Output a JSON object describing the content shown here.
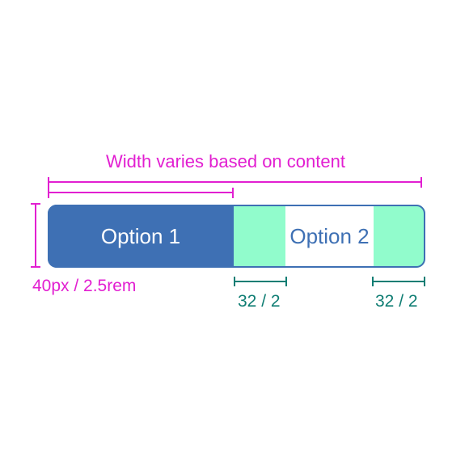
{
  "annotations": {
    "width_label": "Width varies based on content",
    "height_label": "40px / 2.5rem",
    "padding_left_label": "32 / 2",
    "padding_right_label": "32 / 2"
  },
  "segmented_control": {
    "options": [
      {
        "label": "Option 1",
        "selected": true
      },
      {
        "label": "Option 2",
        "selected": false
      }
    ]
  },
  "colors": {
    "annotation_magenta": "#e21fd1",
    "annotation_teal": "#0f7d73",
    "selected_fill": "#3e70b4",
    "padding_highlight": "#91fccc",
    "outline": "#3e70b4"
  }
}
